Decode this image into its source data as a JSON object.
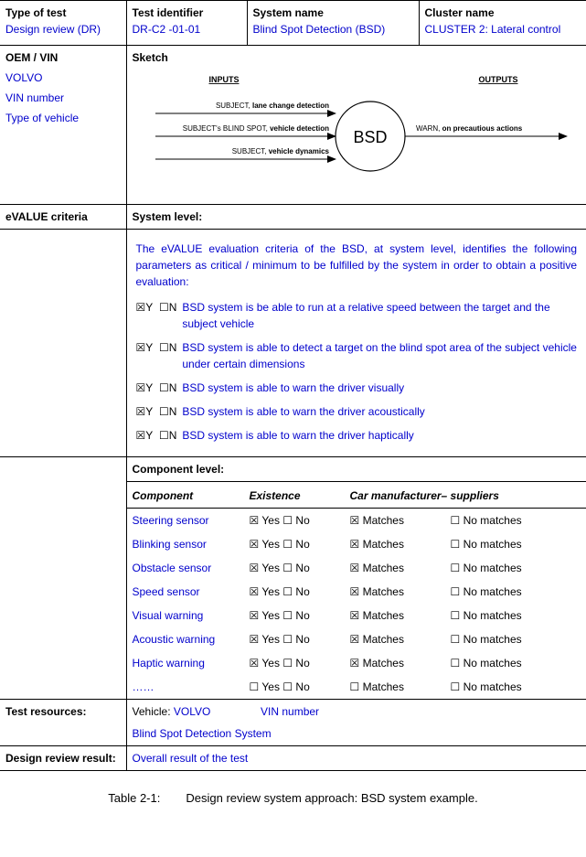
{
  "header": {
    "type_label": "Type of test",
    "type_value": "Design review (DR)",
    "id_label": "Test identifier",
    "id_value": "DR-C2 -01-01",
    "sys_label": "System name",
    "sys_value": "Blind Spot Detection (BSD)",
    "cluster_label": "Cluster name",
    "cluster_value": "CLUSTER 2: Lateral control"
  },
  "oem": {
    "label": "OEM / VIN",
    "v1": "VOLVO",
    "v2": "VIN number",
    "v3": "Type of vehicle"
  },
  "sketch": {
    "label": "Sketch",
    "inputs_label": "INPUTS",
    "outputs_label": "OUTPUTS",
    "node": "BSD",
    "in1a": "SUBJECT,",
    "in1b": "lane change detection",
    "in2a": "SUBJECT's BLIND SPOT,",
    "in2b": "vehicle detection",
    "in3a": "SUBJECT,",
    "in3b": "vehicle dynamics",
    "out1a": "WARN,",
    "out1b": "on precautious actions"
  },
  "criteria": {
    "row_label": "eVALUE criteria",
    "system_label": "System level:",
    "intro": "The eVALUE evaluation criteria of the BSD, at system level, identifies the following parameters as critical / minimum to be fulfilled by the system in order to obtain a positive evaluation:",
    "items": [
      {
        "y": true,
        "text": "BSD system is be able to run at a relative speed between the target and the subject vehicle"
      },
      {
        "y": true,
        "text": "BSD system is able to detect a target on the blind spot area of the subject vehicle under certain dimensions"
      },
      {
        "y": true,
        "text": "BSD system is able to warn the driver visually"
      },
      {
        "y": true,
        "text": "BSD system is able to warn the driver acoustically"
      },
      {
        "y": true,
        "text": "BSD system is able to warn the driver haptically"
      }
    ],
    "component_label": "Component level:",
    "comp_headers": {
      "c1": "Component",
      "c2": "Existence",
      "c3": "Car manufacturer– suppliers"
    },
    "yes": "Yes",
    "no": "No",
    "matches": "Matches",
    "no_matches": "No matches",
    "components": [
      {
        "name": "Steering sensor",
        "yes": true,
        "match": true
      },
      {
        "name": "Blinking sensor",
        "yes": true,
        "match": true
      },
      {
        "name": "Obstacle sensor",
        "yes": true,
        "match": true
      },
      {
        "name": "Speed sensor",
        "yes": true,
        "match": true
      },
      {
        "name": "Visual warning",
        "yes": true,
        "match": true
      },
      {
        "name": "Acoustic warning",
        "yes": true,
        "match": true
      },
      {
        "name": "Haptic warning",
        "yes": true,
        "match": true
      },
      {
        "name": "……",
        "yes": false,
        "match": false
      }
    ]
  },
  "resources": {
    "label": "Test resources:",
    "vehicle_label": "Vehicle:",
    "vehicle_val": "VOLVO",
    "vin": "VIN number",
    "sys": "Blind Spot Detection System"
  },
  "result": {
    "label": "Design review result:",
    "value": "Overall result of the test"
  },
  "caption": {
    "num": "Table 2-1:",
    "text": "Design review system approach: BSD system example."
  },
  "style": {
    "blue": "#0000cc",
    "checked": "☒",
    "unchecked": "☐"
  }
}
